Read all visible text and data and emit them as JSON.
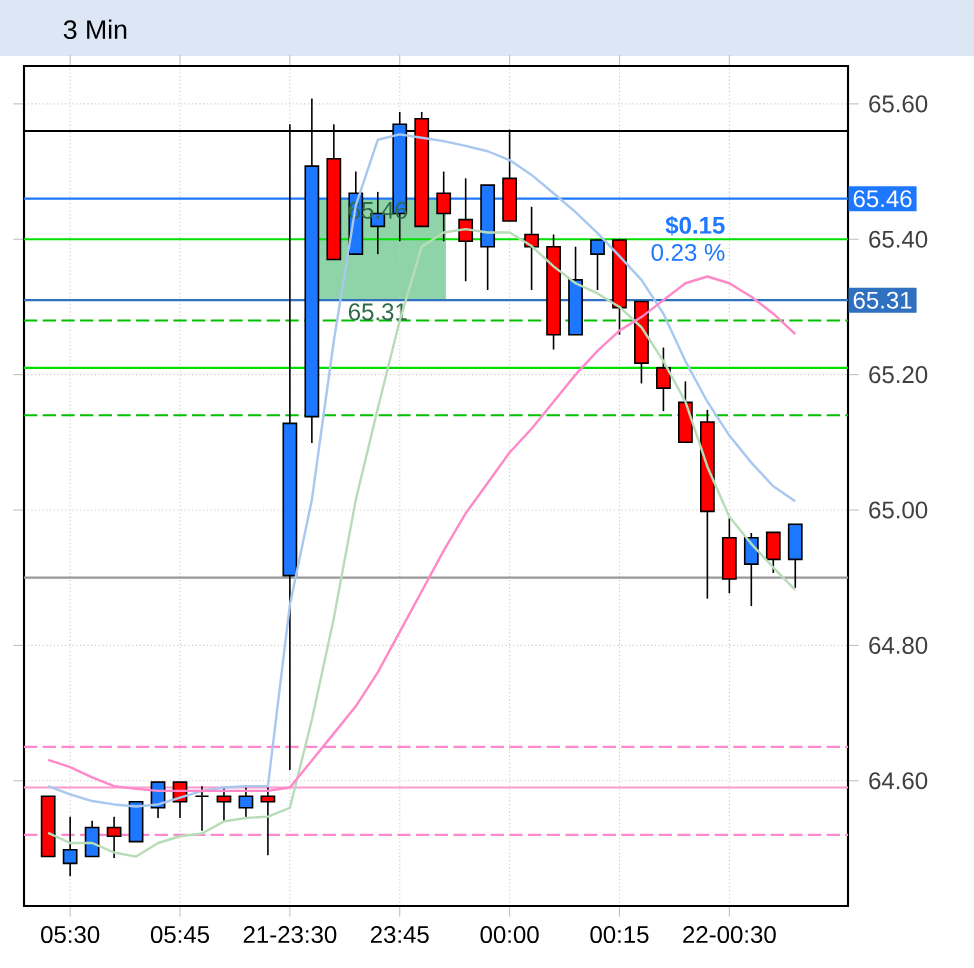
{
  "chart_data": {
    "type": "candlestick",
    "title": "3 Min",
    "categories": [
      null,
      "05:30",
      null,
      null,
      null,
      null,
      "05:45",
      null,
      null,
      null,
      null,
      "21-23:30",
      null,
      null,
      null,
      null,
      "23:45",
      null,
      null,
      null,
      null,
      "00:00",
      null,
      null,
      null,
      null,
      "00:15",
      null,
      null,
      null,
      null,
      "22-00:30",
      null,
      null,
      null
    ],
    "ohlc": [
      [
        64.577,
        64.577,
        64.488,
        64.488
      ],
      [
        64.478,
        64.547,
        64.459,
        64.498
      ],
      [
        64.488,
        64.541,
        64.488,
        64.531
      ],
      [
        64.531,
        64.547,
        64.486,
        64.518
      ],
      [
        64.51,
        64.569,
        64.51,
        64.569
      ],
      [
        64.56,
        64.598,
        64.545,
        64.598
      ],
      [
        64.598,
        64.598,
        64.545,
        64.569
      ],
      [
        64.577,
        64.592,
        64.526,
        64.577
      ],
      [
        64.577,
        64.59,
        64.54,
        64.569
      ],
      [
        64.56,
        64.59,
        64.545,
        64.577
      ],
      [
        64.577,
        64.59,
        64.49,
        64.569
      ],
      [
        64.903,
        65.57,
        64.616,
        65.128
      ],
      [
        65.138,
        65.608,
        65.099,
        65.508
      ],
      [
        65.519,
        65.57,
        65.37,
        65.37
      ],
      [
        65.378,
        65.5,
        65.378,
        65.468
      ],
      [
        65.419,
        65.47,
        65.378,
        65.438
      ],
      [
        65.438,
        65.588,
        65.397,
        65.57
      ],
      [
        65.578,
        65.588,
        65.419,
        65.419
      ],
      [
        65.468,
        65.5,
        65.397,
        65.438
      ],
      [
        65.429,
        65.49,
        65.338,
        65.397
      ],
      [
        65.389,
        65.48,
        65.325,
        65.48
      ],
      [
        65.49,
        65.562,
        65.427,
        65.427
      ],
      [
        65.407,
        65.448,
        65.325,
        65.389
      ],
      [
        65.389,
        65.407,
        65.237,
        65.259
      ],
      [
        65.259,
        65.389,
        65.259,
        65.34
      ],
      [
        65.378,
        65.399,
        65.325,
        65.399
      ],
      [
        65.399,
        65.399,
        65.259,
        65.299
      ],
      [
        65.308,
        65.308,
        65.187,
        65.217
      ],
      [
        65.21,
        65.24,
        65.146,
        65.18
      ],
      [
        65.159,
        65.19,
        65.1,
        65.1
      ],
      [
        65.13,
        65.148,
        64.869,
        64.998
      ],
      [
        64.959,
        64.988,
        64.877,
        64.898
      ],
      [
        64.92,
        64.966,
        64.858,
        64.959
      ],
      [
        64.967,
        64.967,
        64.907,
        64.927
      ],
      [
        64.927,
        64.979,
        64.885,
        64.979
      ]
    ],
    "colors": [
      "#ff0000",
      "#1e78ff",
      "#1e78ff",
      "#ff0000",
      "#1e78ff",
      "#1e78ff",
      "#ff0000",
      "#000000",
      "#ff0000",
      "#1e78ff",
      "#ff0000",
      "#1e78ff",
      "#1e78ff",
      "#ff0000",
      "#1e78ff",
      "#1e78ff",
      "#1e78ff",
      "#ff0000",
      "#ff0000",
      "#ff0000",
      "#1e78ff",
      "#ff0000",
      "#ff0000",
      "#ff0000",
      "#1e78ff",
      "#1e78ff",
      "#ff0000",
      "#ff0000",
      "#ff0000",
      "#ff0000",
      "#ff0000",
      "#ff0000",
      "#1e78ff",
      "#ff0000",
      "#1e78ff"
    ],
    "series": [
      {
        "type": "line",
        "color": "#a8c8f0",
        "values": [
          64.592,
          64.58,
          64.57,
          64.565,
          64.562,
          64.565,
          64.575,
          64.585,
          64.59,
          64.592,
          64.592,
          64.86,
          65.015,
          65.25,
          65.45,
          65.547,
          65.555,
          65.55,
          65.545,
          65.538,
          65.53,
          65.517,
          65.495,
          65.468,
          65.44,
          65.409,
          65.375,
          65.34,
          65.29,
          65.22,
          65.16,
          65.11,
          65.07,
          65.035,
          65.013
        ]
      },
      {
        "type": "line",
        "color": "#b8dcb8",
        "values": [
          64.523,
          64.508,
          64.508,
          64.494,
          64.488,
          64.508,
          64.518,
          64.522,
          64.54,
          64.545,
          64.547,
          64.56,
          64.69,
          64.84,
          65.015,
          65.15,
          65.28,
          65.389,
          65.41,
          65.415,
          65.41,
          65.41,
          65.39,
          65.36,
          65.335,
          65.32,
          65.3,
          65.27,
          65.22,
          65.16,
          65.064,
          64.99,
          64.95,
          64.915,
          64.882
        ]
      },
      {
        "type": "line",
        "color": "#ff88c8",
        "values": [
          64.631,
          64.62,
          64.605,
          64.592,
          64.588,
          64.585,
          64.585,
          64.585,
          64.585,
          64.585,
          64.585,
          64.59,
          64.63,
          64.67,
          64.71,
          64.76,
          64.82,
          64.88,
          64.94,
          64.995,
          65.04,
          65.085,
          65.12,
          65.16,
          65.2,
          65.235,
          65.265,
          65.285,
          65.31,
          65.335,
          65.345,
          65.335,
          65.315,
          65.29,
          65.26
        ]
      }
    ],
    "ylim": [
      64.415,
      65.656
    ],
    "yticks": [
      {
        "value": 64.6,
        "label": "64.60"
      },
      {
        "value": 64.8,
        "label": "64.80"
      },
      {
        "value": 65.0,
        "label": "65.00"
      },
      {
        "value": 65.2,
        "label": "65.20"
      },
      {
        "value": 65.4,
        "label": "65.40"
      },
      {
        "value": 65.6,
        "label": "65.60"
      }
    ],
    "grid": true,
    "ref_lines": [
      {
        "axis": "y",
        "value": 65.56,
        "color": "#000000"
      },
      {
        "axis": "y",
        "value": 65.46,
        "color": "#1e78ff",
        "label": "65.46"
      },
      {
        "axis": "y",
        "value": 65.4,
        "color": "#00e000"
      },
      {
        "axis": "y",
        "value": 65.31,
        "color": "#3070c0",
        "label": "65.31"
      },
      {
        "axis": "y",
        "value": 65.28,
        "color": "#00c000",
        "line_style": "dashed"
      },
      {
        "axis": "y",
        "value": 65.21,
        "color": "#00e000"
      },
      {
        "axis": "y",
        "value": 65.14,
        "color": "#00c000",
        "line_style": "dashed"
      },
      {
        "axis": "y",
        "value": 64.9,
        "color": "#999999"
      },
      {
        "axis": "y",
        "value": 64.65,
        "color": "#ff88cc",
        "line_style": "dashed"
      },
      {
        "axis": "y",
        "value": 64.59,
        "color": "#ff99cc"
      },
      {
        "axis": "y",
        "value": 64.52,
        "color": "#ff88cc",
        "line_style": "dashed"
      }
    ],
    "bands": [
      {
        "axis": "y",
        "from": 65.31,
        "to": 65.46,
        "color": "#8fd4a8"
      }
    ],
    "annotations": [
      "$0.15",
      "0.23 %",
      {
        "text": "65.46",
        "y": 65.46
      },
      {
        "text": "65.31",
        "y": 65.31
      }
    ]
  }
}
